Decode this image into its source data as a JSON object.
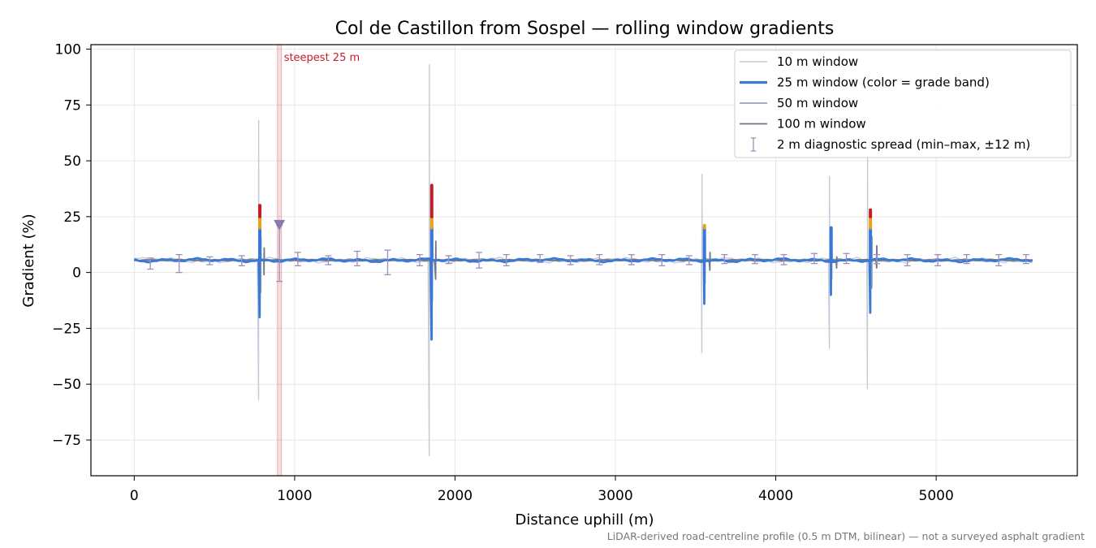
{
  "chart_data": {
    "type": "line",
    "title": "Col de Castillon from Sospel — rolling window gradients",
    "xlabel": "Distance uphill (m)",
    "ylabel": "Gradient (%)",
    "footnote": "LiDAR-derived road-centreline profile (0.5 m DTM, bilinear) — not a surveyed asphalt gradient",
    "xlim": [
      -270,
      5880
    ],
    "ylim": [
      -91,
      102
    ],
    "xticks": [
      0,
      1000,
      2000,
      3000,
      4000,
      5000
    ],
    "xtick_labels": [
      "0",
      "1000",
      "2000",
      "3000",
      "4000",
      "5000"
    ],
    "yticks": [
      100,
      75,
      50,
      25,
      0,
      -25,
      -50,
      -75
    ],
    "ytick_labels": [
      "100",
      "75",
      "50",
      "25",
      "0",
      "−25",
      "−50",
      "−75"
    ],
    "grid": true,
    "legend_position": "top-right",
    "baseline_gradient": 5.5,
    "highlight": {
      "label": "steepest 25 m",
      "x_range": [
        893,
        918
      ],
      "color": "#c0202a",
      "marker_x": 905,
      "marker_y": 21
    },
    "series": [
      {
        "name": "10 m window",
        "color": "#c4cad8",
        "spikes": [
          {
            "x": 776,
            "high": 68,
            "low": -57
          },
          {
            "x": 1840,
            "high": 93,
            "low": -82
          },
          {
            "x": 3540,
            "high": 44,
            "low": -36
          },
          {
            "x": 4335,
            "high": 43,
            "low": -34
          },
          {
            "x": 4572,
            "high": 52,
            "low": -52
          }
        ]
      },
      {
        "name": "25 m window (color = grade band)",
        "color": "#3a78d8",
        "grade_band_colors": [
          "#3a78d8",
          "#e8a21c",
          "#c0202a"
        ],
        "spikes": [
          {
            "x": 783,
            "high": 30,
            "low": -20
          },
          {
            "x": 1855,
            "high": 39,
            "low": -30
          },
          {
            "x": 3555,
            "high": 21,
            "low": -14
          },
          {
            "x": 4345,
            "high": 20,
            "low": -10
          },
          {
            "x": 4590,
            "high": 28,
            "low": -18
          }
        ]
      },
      {
        "name": "50 m window",
        "color": "#98a4b4",
        "spikes": [
          {
            "x": 790,
            "high": 16,
            "low": -9
          },
          {
            "x": 1860,
            "high": 22,
            "low": -13
          },
          {
            "x": 3560,
            "high": 13,
            "low": -5
          },
          {
            "x": 4350,
            "high": 11,
            "low": -3
          },
          {
            "x": 4600,
            "high": 16,
            "low": -7
          }
        ]
      },
      {
        "name": "100 m window",
        "color": "#6e7886",
        "spikes": [
          {
            "x": 810,
            "high": 11,
            "low": -1
          },
          {
            "x": 1880,
            "high": 14,
            "low": -3
          },
          {
            "x": 3590,
            "high": 9,
            "low": 1
          },
          {
            "x": 4380,
            "high": 7,
            "low": 2
          },
          {
            "x": 4630,
            "high": 12,
            "low": 2
          }
        ]
      },
      {
        "name": "2 m diagnostic spread (min–max, ±12 m)",
        "color": "#9a8fbf",
        "errorbars": [
          {
            "x": 100,
            "min": 1.5,
            "max": 6.5
          },
          {
            "x": 280,
            "min": 0,
            "max": 8
          },
          {
            "x": 470,
            "min": 3.5,
            "max": 7
          },
          {
            "x": 670,
            "min": 3,
            "max": 7.5
          },
          {
            "x": 905,
            "min": -4,
            "max": 21
          },
          {
            "x": 1020,
            "min": 3,
            "max": 9
          },
          {
            "x": 1210,
            "min": 3.5,
            "max": 7.5
          },
          {
            "x": 1390,
            "min": 3,
            "max": 9.5
          },
          {
            "x": 1580,
            "min": -1,
            "max": 10
          },
          {
            "x": 1780,
            "min": 3,
            "max": 8
          },
          {
            "x": 1960,
            "min": 4,
            "max": 7.5
          },
          {
            "x": 2150,
            "min": 2,
            "max": 9
          },
          {
            "x": 2320,
            "min": 3,
            "max": 8
          },
          {
            "x": 2530,
            "min": 4.5,
            "max": 8
          },
          {
            "x": 2720,
            "min": 3.5,
            "max": 7.5
          },
          {
            "x": 2900,
            "min": 3.5,
            "max": 8
          },
          {
            "x": 3100,
            "min": 3.5,
            "max": 8
          },
          {
            "x": 3290,
            "min": 3,
            "max": 8
          },
          {
            "x": 3460,
            "min": 3.5,
            "max": 7.5
          },
          {
            "x": 3680,
            "min": 4,
            "max": 8
          },
          {
            "x": 3870,
            "min": 4,
            "max": 8
          },
          {
            "x": 4050,
            "min": 3.5,
            "max": 8
          },
          {
            "x": 4240,
            "min": 4,
            "max": 8.5
          },
          {
            "x": 4440,
            "min": 4,
            "max": 8.5
          },
          {
            "x": 4630,
            "min": 4,
            "max": 8
          },
          {
            "x": 4820,
            "min": 3,
            "max": 8
          },
          {
            "x": 5010,
            "min": 3,
            "max": 8
          },
          {
            "x": 5190,
            "min": 4,
            "max": 8
          },
          {
            "x": 5390,
            "min": 3,
            "max": 8
          },
          {
            "x": 5560,
            "min": 4,
            "max": 8
          }
        ]
      }
    ]
  }
}
